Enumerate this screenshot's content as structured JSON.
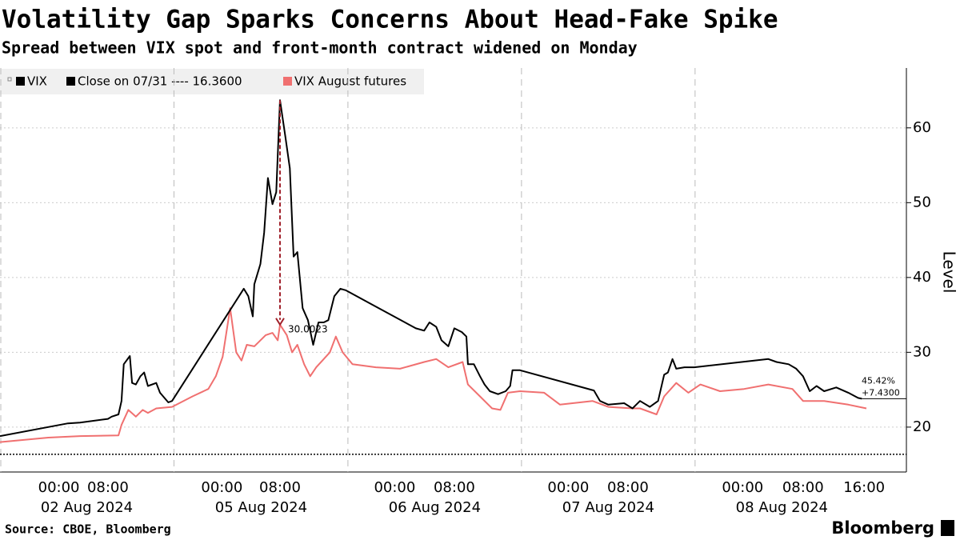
{
  "chart_data": {
    "type": "line",
    "title": "Volatility Gap Sparks Concerns About Head-Fake Spike",
    "subtitle": "Spread between VIX spot and front-month contract widened on Monday",
    "y_label": "Level",
    "source": "Source: CBOE, Bloomberg",
    "brand": "Bloomberg",
    "xlim": [
      0,
      120.1
    ],
    "ylim": [
      14,
      68
    ],
    "yticks": [
      20,
      30,
      40,
      50,
      60
    ],
    "grid": true,
    "xticks": [
      {
        "value": 7.8,
        "label": "00:00"
      },
      {
        "value": 14.3,
        "label": "08:00"
      },
      {
        "value": 29.4,
        "label": "00:00"
      },
      {
        "value": 37.1,
        "label": "08:00"
      },
      {
        "value": 52.3,
        "label": "00:00"
      },
      {
        "value": 60.2,
        "label": "08:00"
      },
      {
        "value": 75.3,
        "label": "00:00"
      },
      {
        "value": 83.2,
        "label": "08:00"
      },
      {
        "value": 98.4,
        "label": "00:00"
      },
      {
        "value": 106.4,
        "label": "08:00"
      },
      {
        "value": 114.5,
        "label": "16:00"
      }
    ],
    "x_group_labels": [
      {
        "value": 11.5,
        "label": "02 Aug 2024"
      },
      {
        "value": 34.6,
        "label": "05 Aug 2024"
      },
      {
        "value": 57.6,
        "label": "06 Aug 2024"
      },
      {
        "value": 80.6,
        "label": "07 Aug 2024"
      },
      {
        "value": 103.6,
        "label": "08 Aug 2024"
      }
    ],
    "reference_line": {
      "name": "Close on 07/31 ---- 16.3600",
      "value": 16.36,
      "color": "#000000"
    },
    "series": [
      {
        "name": "VIX",
        "color": "#000000",
        "x": [
          0,
          9.0,
          10.6,
          14.3,
          14.8,
          15.7,
          16.1,
          16.4,
          17.2,
          17.5,
          18.0,
          18.6,
          19.1,
          19.6,
          20.7,
          21.2,
          22.3,
          22.8,
          32.3,
          32.9,
          33.5,
          33.7,
          34.5,
          35.0,
          35.5,
          36.1,
          36.6,
          37.1,
          37.8,
          38.4,
          38.9,
          39.4,
          40.1,
          40.8,
          41.5,
          42.2,
          42.9,
          43.5,
          44.3,
          45.1,
          45.8,
          55.1,
          56.2,
          56.9,
          57.8,
          58.5,
          59.4,
          60.2,
          61.2,
          61.8,
          62.0,
          62.8,
          63.6,
          64.2,
          64.9,
          66.0,
          67.0,
          67.6,
          67.9,
          68.9,
          78.7,
          79.5,
          80.6,
          82.7,
          83.8,
          84.8,
          86.1,
          87.2,
          88.0,
          88.5,
          89.1,
          89.6,
          90.7,
          92.0,
          101.8,
          102.9,
          104.5,
          105.5,
          106.4,
          107.3,
          108.2,
          109.2,
          110.8,
          112.4,
          113.7,
          114.2
        ],
        "values": [
          18.8,
          20.5,
          20.6,
          21.1,
          21.4,
          21.7,
          23.5,
          28.4,
          29.5,
          25.9,
          25.7,
          26.8,
          27.3,
          25.5,
          25.9,
          24.6,
          23.3,
          23.5,
          38.5,
          37.5,
          34.8,
          39.1,
          41.8,
          46.0,
          53.3,
          49.8,
          51.4,
          63.7,
          58.9,
          54.6,
          42.8,
          43.4,
          35.9,
          34.3,
          31.0,
          34.0,
          34.0,
          34.3,
          37.5,
          38.5,
          38.3,
          33.2,
          32.9,
          34.0,
          33.4,
          31.6,
          30.8,
          33.2,
          32.7,
          32.1,
          28.4,
          28.4,
          26.8,
          25.7,
          24.8,
          24.4,
          24.8,
          25.5,
          27.6,
          27.6,
          24.9,
          23.5,
          23.0,
          23.2,
          22.5,
          23.5,
          22.7,
          23.5,
          27.0,
          27.3,
          29.1,
          27.8,
          28.0,
          28.0,
          29.1,
          28.7,
          28.4,
          27.8,
          26.8,
          24.8,
          25.5,
          24.8,
          25.3,
          24.6,
          23.9,
          23.8
        ]
      },
      {
        "name": "VIX August futures",
        "color": "#f07070",
        "x": [
          0,
          6.4,
          10.6,
          15.7,
          16.1,
          17.0,
          18.0,
          18.9,
          19.6,
          20.7,
          22.8,
          25.5,
          27.6,
          28.6,
          29.5,
          30.5,
          31.3,
          32.0,
          32.7,
          33.7,
          34.5,
          35.2,
          36.1,
          36.8,
          37.1,
          38.0,
          38.7,
          39.4,
          40.3,
          41.1,
          41.9,
          42.9,
          43.7,
          44.5,
          45.4,
          46.7,
          49.8,
          53.0,
          56.2,
          57.8,
          59.4,
          61.3,
          62.0,
          63.6,
          65.2,
          66.3,
          67.3,
          68.9,
          72.1,
          74.2,
          78.5,
          80.6,
          83.8,
          84.8,
          87.0,
          88.0,
          89.6,
          91.2,
          92.8,
          95.4,
          98.6,
          101.8,
          105.0,
          106.4,
          109.2,
          112.4,
          114.8
        ],
        "values": [
          18.0,
          18.6,
          18.8,
          18.9,
          20.3,
          22.3,
          21.4,
          22.3,
          21.9,
          22.5,
          22.7,
          24.1,
          25.1,
          26.8,
          29.4,
          35.9,
          30.0,
          28.9,
          31.0,
          30.8,
          31.6,
          32.3,
          32.6,
          31.6,
          33.7,
          32.3,
          30.0,
          31.0,
          28.4,
          26.8,
          28.0,
          29.1,
          30.0,
          32.1,
          30.0,
          28.4,
          28.0,
          27.8,
          28.7,
          29.1,
          28.0,
          28.7,
          25.7,
          24.1,
          22.5,
          22.3,
          24.6,
          24.8,
          24.6,
          23.0,
          23.5,
          22.7,
          22.5,
          22.5,
          21.7,
          24.1,
          25.9,
          24.6,
          25.7,
          24.8,
          25.1,
          25.7,
          25.1,
          23.5,
          23.5,
          23.0,
          22.5
        ]
      }
    ],
    "spread_annotation": {
      "x": 37.1,
      "from": 63.7,
      "to": 33.7,
      "label": "30.0023",
      "color": "#a0202a"
    },
    "last_labels": [
      "45.42%",
      "+7.4300"
    ]
  }
}
